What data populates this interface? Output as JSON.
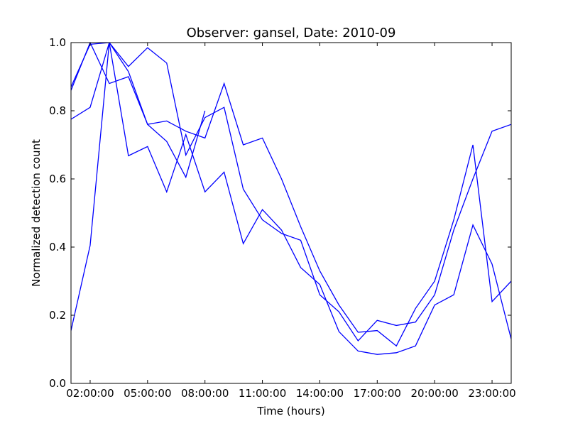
{
  "chart_data": {
    "type": "line",
    "title": "Observer: gansel, Date: 2010-09",
    "xlabel": "Time (hours)",
    "ylabel": "Normalized detection count",
    "xlim": [
      1,
      24
    ],
    "ylim": [
      0.0,
      1.0
    ],
    "grid": false,
    "legend": "none",
    "line_color": "#0000ff",
    "x_ticks": [
      {
        "value": 2,
        "label": "02:00:00"
      },
      {
        "value": 5,
        "label": "05:00:00"
      },
      {
        "value": 8,
        "label": "08:00:00"
      },
      {
        "value": 11,
        "label": "11:00:00"
      },
      {
        "value": 14,
        "label": "14:00:00"
      },
      {
        "value": 17,
        "label": "17:00:00"
      },
      {
        "value": 20,
        "label": "20:00:00"
      },
      {
        "value": 23,
        "label": "23:00:00"
      }
    ],
    "y_ticks": [
      {
        "value": 0.0,
        "label": "0.0"
      },
      {
        "value": 0.2,
        "label": "0.2"
      },
      {
        "value": 0.4,
        "label": "0.4"
      },
      {
        "value": 0.6,
        "label": "0.6"
      },
      {
        "value": 0.8,
        "label": "0.8"
      },
      {
        "value": 1.0,
        "label": "1.0"
      }
    ],
    "series": [
      {
        "x": [
          1,
          2,
          3,
          4,
          5,
          6,
          7,
          8,
          9,
          10,
          11,
          12,
          13,
          14,
          15,
          16,
          17,
          18,
          19,
          20,
          21,
          22,
          23,
          24
        ],
        "values": [
          0.86,
          1.0,
          0.88,
          0.9,
          0.76,
          0.77,
          0.74,
          0.72,
          0.88,
          0.7,
          0.72,
          0.6,
          0.46,
          0.33,
          0.23,
          0.15,
          0.155,
          0.11,
          0.22,
          0.3,
          0.48,
          0.7,
          0.24,
          0.3
        ]
      },
      {
        "x": [
          1,
          2,
          3,
          4,
          5,
          6,
          7,
          8,
          9,
          10,
          11,
          12,
          13,
          14,
          15,
          16,
          17,
          18,
          19,
          20,
          21,
          22,
          23,
          24
        ],
        "values": [
          0.87,
          0.995,
          1.0,
          0.93,
          0.985,
          0.94,
          0.67,
          0.78,
          0.81,
          0.57,
          0.48,
          0.44,
          0.42,
          0.26,
          0.21,
          0.125,
          0.185,
          0.17,
          0.18,
          0.26,
          0.45,
          0.6,
          0.74,
          0.76
        ]
      },
      {
        "x": [
          1,
          2,
          3,
          4,
          5,
          6,
          7,
          8
        ],
        "values": [
          0.775,
          0.81,
          1.0,
          0.915,
          0.76,
          0.71,
          0.605,
          0.8
        ]
      },
      {
        "x": [
          1,
          2,
          3,
          4,
          5,
          6,
          7,
          8,
          9,
          10,
          11,
          12,
          13,
          14,
          15,
          16,
          17,
          18,
          19,
          20,
          21,
          22,
          23,
          24
        ],
        "values": [
          0.155,
          0.405,
          1.0,
          0.668,
          0.695,
          0.562,
          0.73,
          0.562,
          0.62,
          0.41,
          0.51,
          0.45,
          0.34,
          0.29,
          0.152,
          0.095,
          0.085,
          0.09,
          0.11,
          0.23,
          0.26,
          0.465,
          0.35,
          0.13
        ]
      }
    ]
  }
}
